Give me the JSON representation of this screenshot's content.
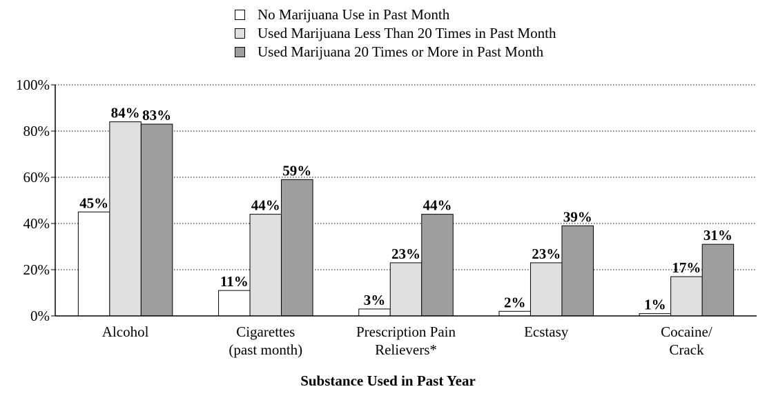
{
  "chart_data": {
    "type": "bar",
    "categories": [
      [
        "Alcohol"
      ],
      [
        "Cigarettes",
        "(past month)"
      ],
      [
        "Prescription Pain",
        "Relievers*"
      ],
      [
        "Ecstasy"
      ],
      [
        "Cocaine/",
        "Crack"
      ]
    ],
    "series": [
      {
        "name": "No Marijuana Use in Past Month",
        "color": "#ffffff",
        "values": [
          45,
          11,
          3,
          2,
          1
        ]
      },
      {
        "name": "Used Marijuana Less Than 20 Times in Past Month",
        "color": "#e0e0e0",
        "values": [
          84,
          44,
          23,
          23,
          17
        ]
      },
      {
        "name": "Used Marijuana 20 Times or More in Past Month",
        "color": "#9e9e9e",
        "values": [
          83,
          59,
          44,
          39,
          31
        ]
      }
    ],
    "value_suffix": "%",
    "ylim": [
      0,
      100
    ],
    "yticks": [
      "0%",
      "20%",
      "40%",
      "60%",
      "80%",
      "100%"
    ],
    "grid": true,
    "legend_position": "top-center",
    "xlabel": "Substance Used in Past Year",
    "ylabel": ""
  }
}
